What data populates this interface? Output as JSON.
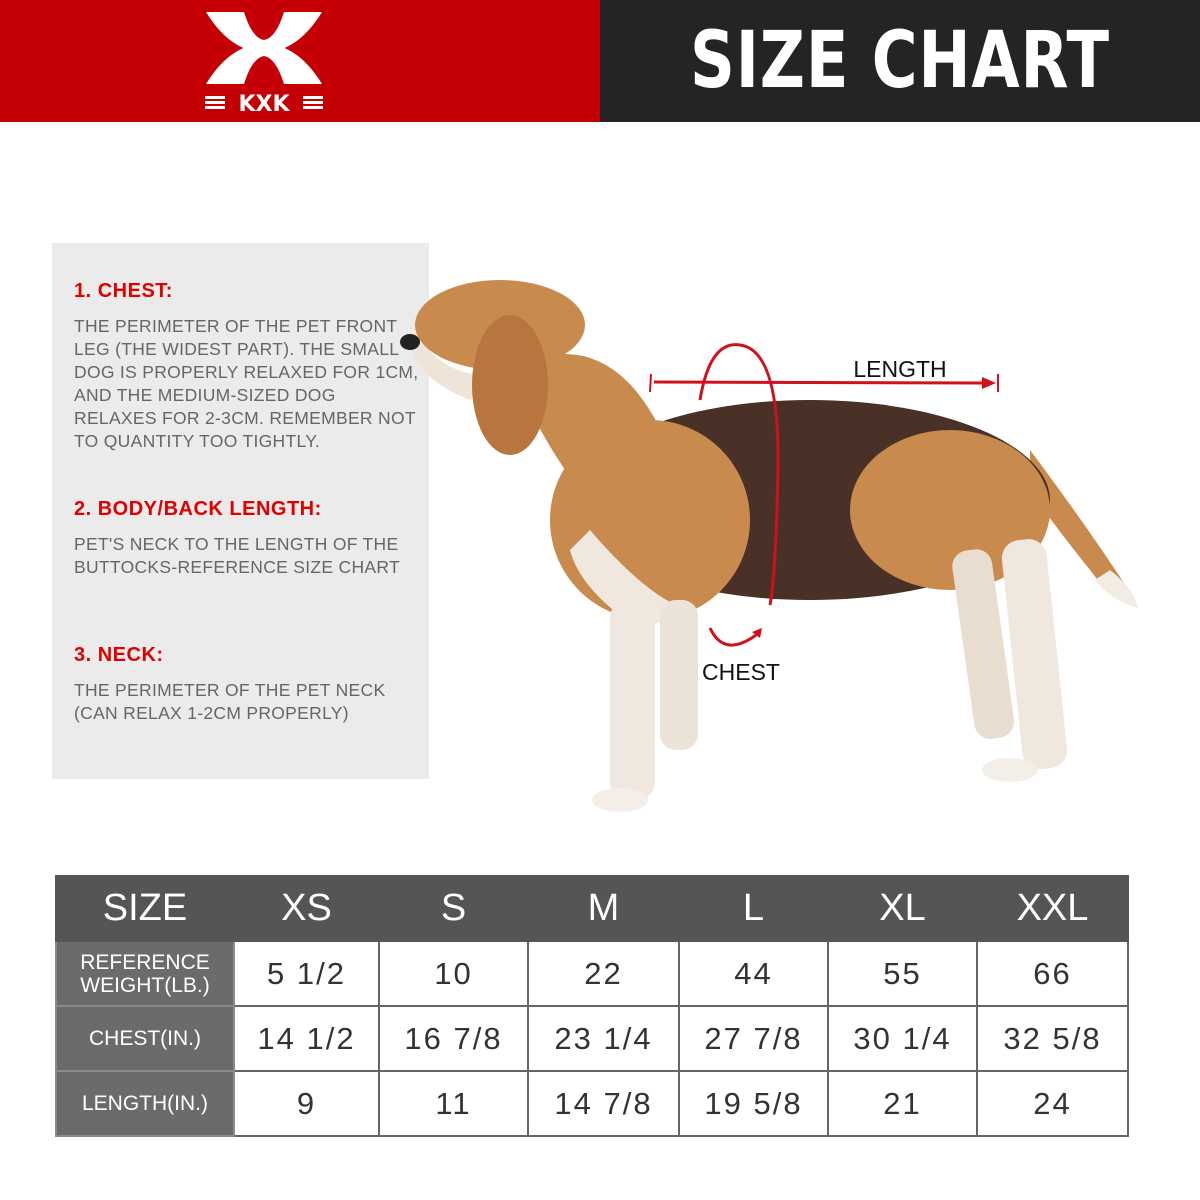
{
  "header": {
    "brand": "KXK",
    "title": "SIZE CHART",
    "brand_color": "#c40006",
    "dark_color": "#242424"
  },
  "guide": [
    {
      "heading": "1. CHEST:",
      "text": "THE PERIMETER OF THE PET FRONT LEG (THE WIDEST PART). THE SMALL DOG IS PROPERLY RELAXED FOR 1CM, AND THE MEDIUM-SIZED DOG RELAXES FOR 2-3CM. REMEMBER NOT TO QUANTITY TOO TIGHTLY."
    },
    {
      "heading": "2. BODY/BACK LENGTH:",
      "text": "PET'S NECK TO THE LENGTH OF THE BUTTOCKS-REFERENCE SIZE CHART"
    },
    {
      "heading": "3. NECK:",
      "text": "THE PERIMETER OF THE PET NECK (CAN RELAX 1-2CM PROPERLY)"
    }
  ],
  "diagram": {
    "length_label": "LENGTH",
    "chest_label": "CHEST",
    "accent": "#d0101a"
  },
  "table": {
    "headers": [
      "SIZE",
      "XS",
      "S",
      "M",
      "L",
      "XL",
      "XXL"
    ],
    "rows": [
      {
        "label": "REFERENCE WEIGHT(LB.)",
        "values": [
          "5 1/2",
          "10",
          "22",
          "44",
          "55",
          "66"
        ]
      },
      {
        "label": "CHEST(IN.)",
        "values": [
          "14 1/2",
          "16 7/8",
          "23 1/4",
          "27 7/8",
          "30 1/4",
          "32 5/8"
        ]
      },
      {
        "label": "LENGTH(IN.)",
        "values": [
          "9",
          "11",
          "14 7/8",
          "19 5/8",
          "21",
          "24"
        ]
      }
    ]
  }
}
